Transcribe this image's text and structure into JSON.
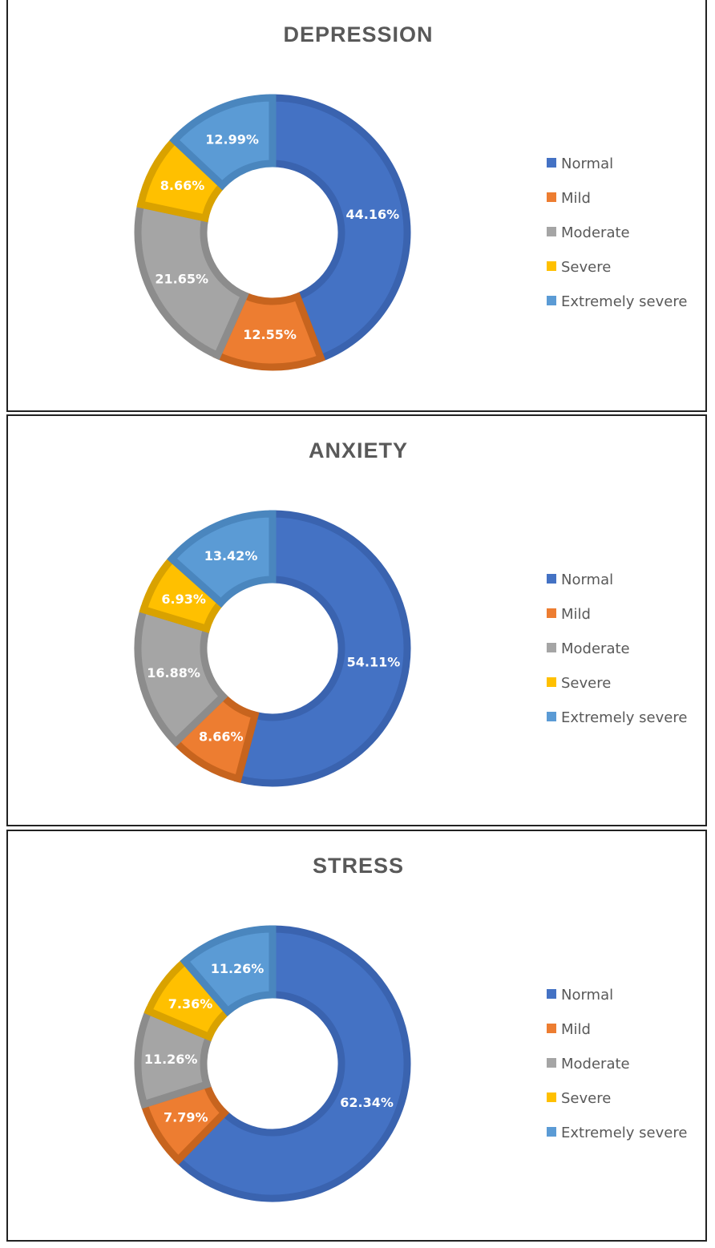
{
  "chart_data": [
    {
      "type": "donut",
      "title": "DEPRESSION",
      "categories": [
        "Normal",
        "Mild",
        "Moderate",
        "Severe",
        "Extremely severe"
      ],
      "values": [
        44.16,
        12.55,
        21.65,
        8.66,
        12.99
      ],
      "labels": [
        "44.16%",
        "12.55%",
        "21.65%",
        "8.66%",
        "12.99%"
      ],
      "legend_position": "right"
    },
    {
      "type": "donut",
      "title": "ANXIETY",
      "categories": [
        "Normal",
        "Mild",
        "Moderate",
        "Severe",
        "Extremely severe"
      ],
      "values": [
        54.11,
        8.66,
        16.88,
        6.93,
        13.42
      ],
      "labels": [
        "54.11%",
        "8.66%",
        "16.88%",
        "6.93%",
        "13.42%"
      ],
      "legend_position": "right"
    },
    {
      "type": "donut",
      "title": "STRESS",
      "categories": [
        "Normal",
        "Mild",
        "Moderate",
        "Severe",
        "Extremely severe"
      ],
      "values": [
        62.34,
        7.79,
        11.26,
        7.36,
        11.26
      ],
      "labels": [
        "62.34%",
        "7.79%",
        "11.26%",
        "7.36%",
        "11.26%"
      ],
      "legend_position": "right"
    }
  ],
  "colors": {
    "Normal": "#4472C4",
    "Mild": "#ED7D31",
    "Moderate": "#A5A5A5",
    "Severe": "#FFC000",
    "Extremely severe": "#5B9BD5"
  },
  "border_colors": {
    "Normal": "#3A63AF",
    "Mild": "#C7641E",
    "Moderate": "#8C8C8C",
    "Severe": "#D9A200",
    "Extremely severe": "#4A86BE"
  }
}
